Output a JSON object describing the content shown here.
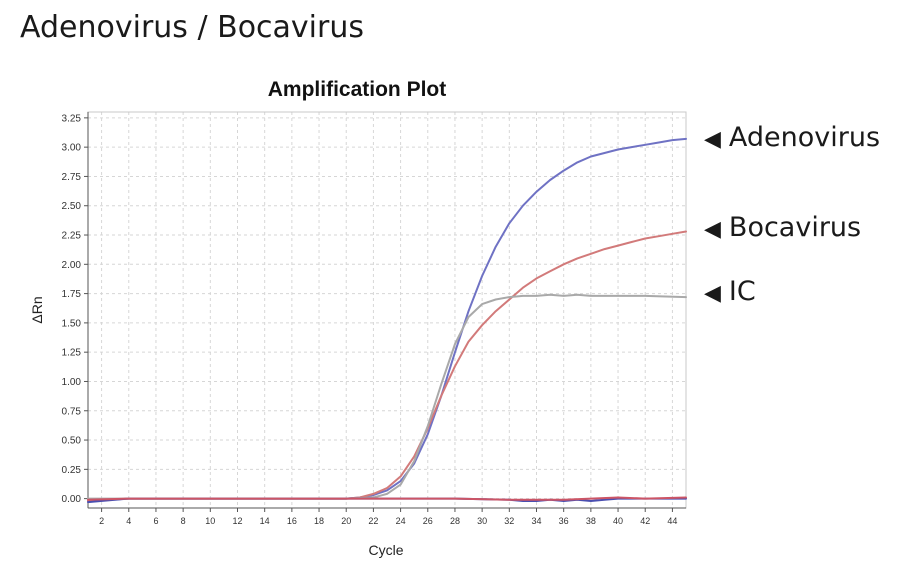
{
  "page": {
    "title": "Adenovirus / Bocavirus"
  },
  "legend": {
    "arrow": "◀",
    "items": [
      "Adenovirus",
      "Bocavirus",
      "IC"
    ]
  },
  "chart_data": {
    "type": "line",
    "title": "Amplification Plot",
    "xlabel": "Cycle",
    "ylabel": "ΔRn",
    "xlim": [
      1,
      45
    ],
    "ylim": [
      -0.08,
      3.3
    ],
    "x_ticks": [
      2,
      4,
      6,
      8,
      10,
      12,
      14,
      16,
      18,
      20,
      22,
      24,
      26,
      28,
      30,
      32,
      34,
      36,
      38,
      40,
      42,
      44
    ],
    "y_ticks": [
      0.0,
      0.25,
      0.5,
      0.75,
      1.0,
      1.25,
      1.5,
      1.75,
      2.0,
      2.25,
      2.5,
      2.75,
      3.0,
      3.25
    ],
    "grid": true,
    "series": [
      {
        "name": "Adenovirus",
        "color": "#6f72c4",
        "x": [
          1,
          4,
          8,
          12,
          16,
          20,
          21,
          22,
          23,
          24,
          25,
          26,
          27,
          28,
          29,
          30,
          31,
          32,
          33,
          34,
          35,
          36,
          37,
          38,
          39,
          40,
          41,
          42,
          43,
          44,
          45
        ],
        "y": [
          -0.02,
          0.0,
          0.0,
          0.0,
          0.0,
          0.0,
          0.01,
          0.03,
          0.07,
          0.15,
          0.3,
          0.55,
          0.88,
          1.25,
          1.6,
          1.9,
          2.15,
          2.35,
          2.5,
          2.62,
          2.72,
          2.8,
          2.87,
          2.92,
          2.95,
          2.98,
          3.0,
          3.02,
          3.04,
          3.06,
          3.07
        ]
      },
      {
        "name": "Bocavirus",
        "color": "#d27a7a",
        "x": [
          1,
          4,
          8,
          12,
          16,
          20,
          21,
          22,
          23,
          24,
          25,
          26,
          27,
          28,
          29,
          30,
          31,
          32,
          33,
          34,
          35,
          36,
          37,
          38,
          39,
          40,
          41,
          42,
          43,
          44,
          45
        ],
        "y": [
          -0.02,
          0.0,
          0.0,
          0.0,
          0.0,
          0.0,
          0.01,
          0.04,
          0.09,
          0.19,
          0.36,
          0.6,
          0.88,
          1.13,
          1.34,
          1.48,
          1.6,
          1.7,
          1.8,
          1.88,
          1.94,
          2.0,
          2.05,
          2.09,
          2.13,
          2.16,
          2.19,
          2.22,
          2.24,
          2.26,
          2.28
        ]
      },
      {
        "name": "IC",
        "color": "#a9a9a9",
        "x": [
          1,
          4,
          8,
          12,
          16,
          20,
          22,
          23,
          24,
          25,
          26,
          27,
          28,
          29,
          30,
          31,
          32,
          33,
          34,
          35,
          36,
          37,
          38,
          40,
          42,
          45
        ],
        "y": [
          0.0,
          0.0,
          0.0,
          0.0,
          0.0,
          0.0,
          0.01,
          0.04,
          0.12,
          0.32,
          0.62,
          0.98,
          1.32,
          1.55,
          1.66,
          1.7,
          1.72,
          1.73,
          1.73,
          1.74,
          1.73,
          1.74,
          1.73,
          1.73,
          1.73,
          1.72
        ]
      },
      {
        "name": "",
        "color": "#4a4fb0",
        "x": [
          1,
          4,
          8,
          12,
          16,
          20,
          24,
          28,
          32,
          33,
          34,
          35,
          36,
          37,
          38,
          39,
          40,
          42,
          45
        ],
        "y": [
          -0.03,
          0.0,
          0.0,
          0.0,
          0.0,
          0.0,
          0.0,
          0.0,
          -0.01,
          -0.02,
          -0.02,
          -0.01,
          -0.02,
          -0.01,
          -0.02,
          -0.01,
          0.0,
          0.0,
          0.0
        ]
      },
      {
        "name": "",
        "color": "#cc5566",
        "x": [
          1,
          4,
          6,
          8,
          10,
          12,
          16,
          20,
          24,
          28,
          32,
          36,
          38,
          40,
          42,
          45
        ],
        "y": [
          -0.01,
          0.0,
          0.0,
          0.0,
          0.0,
          0.0,
          0.0,
          0.0,
          0.0,
          0.0,
          -0.01,
          -0.01,
          0.0,
          0.01,
          0.0,
          0.01
        ]
      }
    ]
  }
}
